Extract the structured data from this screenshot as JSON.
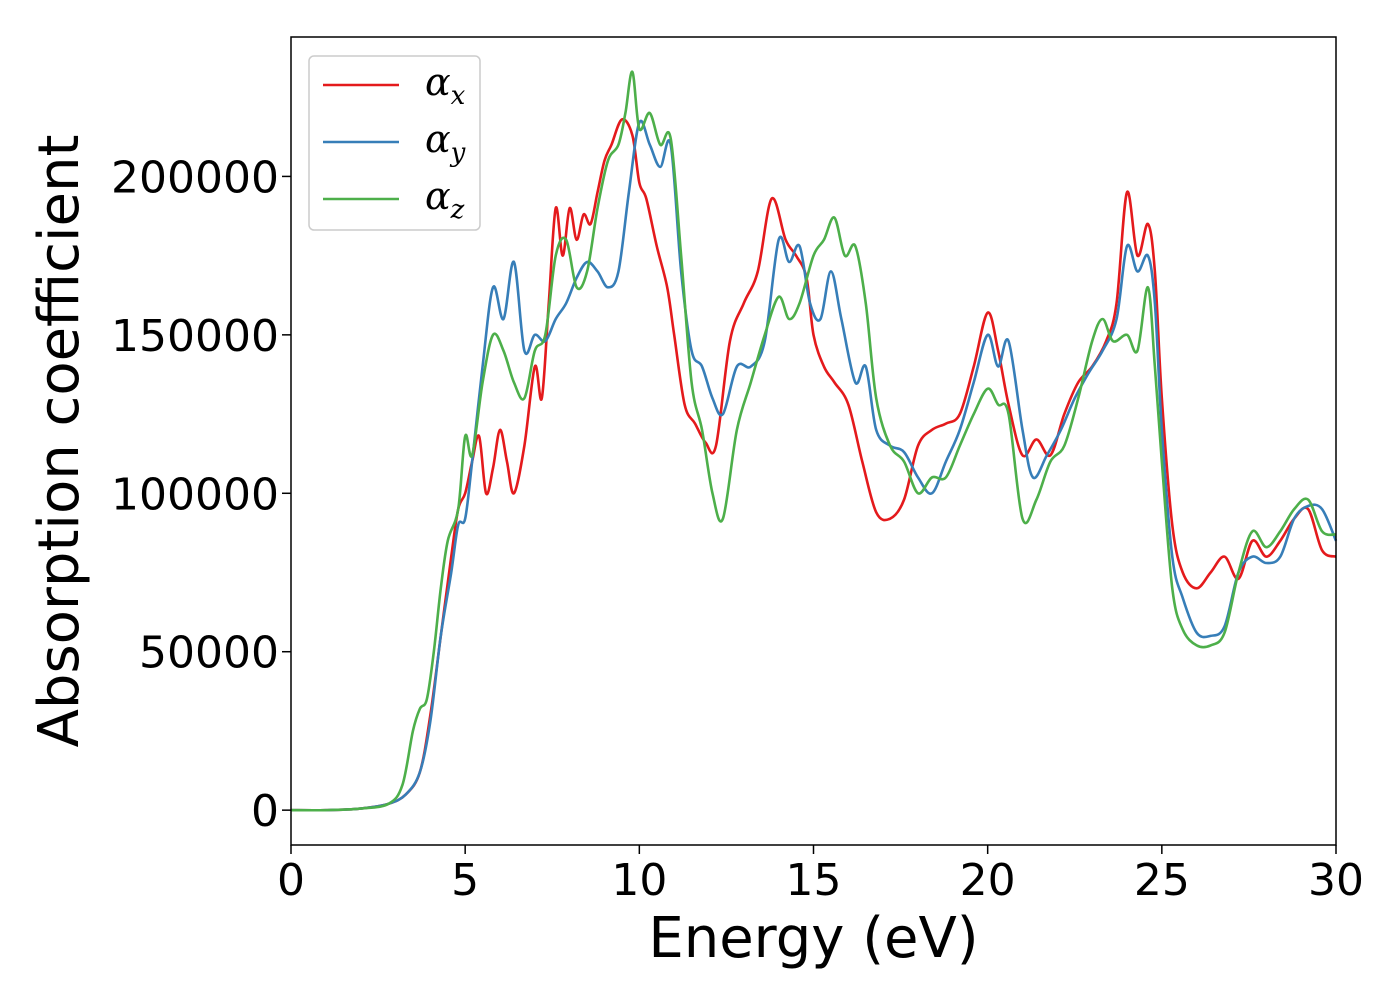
{
  "chart_data": {
    "type": "line",
    "title": "",
    "xlabel": "Energy (eV)",
    "ylabel": "Absorption coefficient",
    "xlim": [
      0,
      30
    ],
    "ylim": [
      -11000,
      244000
    ],
    "xticks": [
      0,
      5,
      10,
      15,
      20,
      25,
      30
    ],
    "yticks": [
      0,
      50000,
      100000,
      150000,
      200000
    ],
    "legend_position": "top-left",
    "grid": false,
    "series": [
      {
        "name": "α_x",
        "symbol": "α",
        "subscript": "x",
        "color": "#e41a1c",
        "points": [
          [
            0,
            0
          ],
          [
            1,
            0
          ],
          [
            2,
            500
          ],
          [
            2.8,
            2000
          ],
          [
            3.3,
            5000
          ],
          [
            3.7,
            12000
          ],
          [
            4.0,
            30000
          ],
          [
            4.3,
            55000
          ],
          [
            4.6,
            80000
          ],
          [
            4.8,
            95000
          ],
          [
            5.0,
            100000
          ],
          [
            5.2,
            110000
          ],
          [
            5.4,
            118000
          ],
          [
            5.6,
            100000
          ],
          [
            5.8,
            108000
          ],
          [
            6.0,
            120000
          ],
          [
            6.2,
            110000
          ],
          [
            6.4,
            100000
          ],
          [
            6.7,
            115000
          ],
          [
            7.0,
            140000
          ],
          [
            7.2,
            130000
          ],
          [
            7.4,
            160000
          ],
          [
            7.6,
            190000
          ],
          [
            7.8,
            175000
          ],
          [
            8.0,
            190000
          ],
          [
            8.2,
            180000
          ],
          [
            8.4,
            188000
          ],
          [
            8.6,
            185000
          ],
          [
            8.8,
            195000
          ],
          [
            9.0,
            205000
          ],
          [
            9.2,
            210000
          ],
          [
            9.5,
            218000
          ],
          [
            9.8,
            213000
          ],
          [
            10.0,
            198000
          ],
          [
            10.2,
            193000
          ],
          [
            10.5,
            178000
          ],
          [
            10.8,
            165000
          ],
          [
            11.0,
            150000
          ],
          [
            11.3,
            128000
          ],
          [
            11.6,
            122000
          ],
          [
            11.9,
            116000
          ],
          [
            12.2,
            115000
          ],
          [
            12.6,
            148000
          ],
          [
            13.0,
            160000
          ],
          [
            13.4,
            170000
          ],
          [
            13.8,
            193000
          ],
          [
            14.2,
            180000
          ],
          [
            14.5,
            175000
          ],
          [
            14.8,
            168000
          ],
          [
            15.0,
            150000
          ],
          [
            15.3,
            140000
          ],
          [
            15.6,
            135000
          ],
          [
            16.0,
            128000
          ],
          [
            16.4,
            110000
          ],
          [
            16.8,
            94000
          ],
          [
            17.2,
            92000
          ],
          [
            17.6,
            98000
          ],
          [
            18.0,
            115000
          ],
          [
            18.4,
            120000
          ],
          [
            18.8,
            122000
          ],
          [
            19.2,
            125000
          ],
          [
            19.6,
            140000
          ],
          [
            20.0,
            157000
          ],
          [
            20.3,
            145000
          ],
          [
            20.6,
            128000
          ],
          [
            21.0,
            112000
          ],
          [
            21.4,
            117000
          ],
          [
            21.8,
            112000
          ],
          [
            22.2,
            125000
          ],
          [
            22.6,
            135000
          ],
          [
            23.0,
            140000
          ],
          [
            23.4,
            148000
          ],
          [
            23.7,
            160000
          ],
          [
            24.0,
            195000
          ],
          [
            24.3,
            175000
          ],
          [
            24.6,
            185000
          ],
          [
            24.8,
            170000
          ],
          [
            25.0,
            130000
          ],
          [
            25.3,
            90000
          ],
          [
            25.6,
            75000
          ],
          [
            26.0,
            70000
          ],
          [
            26.4,
            75000
          ],
          [
            26.8,
            80000
          ],
          [
            27.2,
            73000
          ],
          [
            27.6,
            85000
          ],
          [
            28.0,
            80000
          ],
          [
            28.4,
            85000
          ],
          [
            28.8,
            92000
          ],
          [
            29.2,
            95000
          ],
          [
            29.6,
            82000
          ],
          [
            30.0,
            80000
          ]
        ]
      },
      {
        "name": "α_y",
        "symbol": "α",
        "subscript": "y",
        "color": "#377eb8",
        "points": [
          [
            0,
            0
          ],
          [
            1,
            0
          ],
          [
            2,
            500
          ],
          [
            2.8,
            2000
          ],
          [
            3.3,
            5000
          ],
          [
            3.7,
            12000
          ],
          [
            4.0,
            28000
          ],
          [
            4.3,
            55000
          ],
          [
            4.6,
            75000
          ],
          [
            4.8,
            90000
          ],
          [
            5.0,
            92000
          ],
          [
            5.2,
            110000
          ],
          [
            5.5,
            140000
          ],
          [
            5.8,
            165000
          ],
          [
            6.1,
            155000
          ],
          [
            6.4,
            173000
          ],
          [
            6.7,
            145000
          ],
          [
            7.0,
            150000
          ],
          [
            7.3,
            148000
          ],
          [
            7.6,
            155000
          ],
          [
            7.9,
            160000
          ],
          [
            8.2,
            168000
          ],
          [
            8.5,
            173000
          ],
          [
            8.8,
            170000
          ],
          [
            9.1,
            165000
          ],
          [
            9.4,
            170000
          ],
          [
            9.7,
            195000
          ],
          [
            10.0,
            217000
          ],
          [
            10.3,
            210000
          ],
          [
            10.6,
            203000
          ],
          [
            10.9,
            210000
          ],
          [
            11.2,
            170000
          ],
          [
            11.5,
            145000
          ],
          [
            11.8,
            140000
          ],
          [
            12.1,
            130000
          ],
          [
            12.4,
            125000
          ],
          [
            12.8,
            140000
          ],
          [
            13.2,
            140000
          ],
          [
            13.6,
            148000
          ],
          [
            14.0,
            180000
          ],
          [
            14.3,
            173000
          ],
          [
            14.6,
            178000
          ],
          [
            14.9,
            160000
          ],
          [
            15.2,
            155000
          ],
          [
            15.5,
            170000
          ],
          [
            15.8,
            155000
          ],
          [
            16.2,
            135000
          ],
          [
            16.5,
            140000
          ],
          [
            16.8,
            120000
          ],
          [
            17.2,
            115000
          ],
          [
            17.6,
            113000
          ],
          [
            18.0,
            105000
          ],
          [
            18.4,
            100000
          ],
          [
            18.8,
            110000
          ],
          [
            19.2,
            120000
          ],
          [
            19.6,
            135000
          ],
          [
            20.0,
            150000
          ],
          [
            20.3,
            140000
          ],
          [
            20.6,
            148000
          ],
          [
            21.0,
            120000
          ],
          [
            21.3,
            105000
          ],
          [
            21.7,
            112000
          ],
          [
            22.1,
            120000
          ],
          [
            22.5,
            130000
          ],
          [
            22.9,
            138000
          ],
          [
            23.3,
            145000
          ],
          [
            23.7,
            155000
          ],
          [
            24.0,
            178000
          ],
          [
            24.3,
            170000
          ],
          [
            24.6,
            175000
          ],
          [
            24.8,
            160000
          ],
          [
            25.0,
            120000
          ],
          [
            25.3,
            80000
          ],
          [
            25.6,
            67000
          ],
          [
            26.0,
            56000
          ],
          [
            26.4,
            55000
          ],
          [
            26.8,
            58000
          ],
          [
            27.2,
            75000
          ],
          [
            27.6,
            80000
          ],
          [
            28.0,
            78000
          ],
          [
            28.4,
            80000
          ],
          [
            28.8,
            92000
          ],
          [
            29.2,
            96000
          ],
          [
            29.6,
            95000
          ],
          [
            30.0,
            85000
          ]
        ]
      },
      {
        "name": "α_z",
        "symbol": "α",
        "subscript": "z",
        "color": "#4daf4a",
        "points": [
          [
            0,
            0
          ],
          [
            1,
            0
          ],
          [
            2,
            500
          ],
          [
            2.8,
            2000
          ],
          [
            3.2,
            8000
          ],
          [
            3.5,
            25000
          ],
          [
            3.7,
            32000
          ],
          [
            3.9,
            35000
          ],
          [
            4.1,
            50000
          ],
          [
            4.3,
            70000
          ],
          [
            4.5,
            85000
          ],
          [
            4.8,
            95000
          ],
          [
            5.0,
            118000
          ],
          [
            5.2,
            112000
          ],
          [
            5.5,
            135000
          ],
          [
            5.8,
            150000
          ],
          [
            6.1,
            145000
          ],
          [
            6.4,
            135000
          ],
          [
            6.7,
            130000
          ],
          [
            7.0,
            145000
          ],
          [
            7.3,
            150000
          ],
          [
            7.6,
            175000
          ],
          [
            7.9,
            180000
          ],
          [
            8.2,
            165000
          ],
          [
            8.5,
            170000
          ],
          [
            8.8,
            190000
          ],
          [
            9.1,
            205000
          ],
          [
            9.4,
            210000
          ],
          [
            9.6,
            220000
          ],
          [
            9.8,
            233000
          ],
          [
            10.0,
            215000
          ],
          [
            10.3,
            220000
          ],
          [
            10.6,
            210000
          ],
          [
            10.9,
            212000
          ],
          [
            11.2,
            175000
          ],
          [
            11.5,
            135000
          ],
          [
            11.8,
            120000
          ],
          [
            12.1,
            100000
          ],
          [
            12.4,
            92000
          ],
          [
            12.8,
            120000
          ],
          [
            13.2,
            135000
          ],
          [
            13.6,
            150000
          ],
          [
            14.0,
            162000
          ],
          [
            14.3,
            155000
          ],
          [
            14.6,
            160000
          ],
          [
            15.0,
            175000
          ],
          [
            15.3,
            180000
          ],
          [
            15.6,
            187000
          ],
          [
            15.9,
            175000
          ],
          [
            16.2,
            178000
          ],
          [
            16.5,
            160000
          ],
          [
            16.8,
            130000
          ],
          [
            17.2,
            115000
          ],
          [
            17.6,
            110000
          ],
          [
            18.0,
            100000
          ],
          [
            18.4,
            105000
          ],
          [
            18.8,
            105000
          ],
          [
            19.2,
            115000
          ],
          [
            19.6,
            125000
          ],
          [
            20.0,
            133000
          ],
          [
            20.3,
            128000
          ],
          [
            20.6,
            125000
          ],
          [
            21.0,
            92000
          ],
          [
            21.4,
            98000
          ],
          [
            21.8,
            110000
          ],
          [
            22.2,
            115000
          ],
          [
            22.6,
            130000
          ],
          [
            23.0,
            148000
          ],
          [
            23.3,
            155000
          ],
          [
            23.6,
            148000
          ],
          [
            24.0,
            150000
          ],
          [
            24.3,
            145000
          ],
          [
            24.6,
            165000
          ],
          [
            24.8,
            140000
          ],
          [
            25.0,
            110000
          ],
          [
            25.3,
            70000
          ],
          [
            25.6,
            57000
          ],
          [
            26.0,
            52000
          ],
          [
            26.4,
            52000
          ],
          [
            26.8,
            56000
          ],
          [
            27.2,
            75000
          ],
          [
            27.6,
            88000
          ],
          [
            28.0,
            83000
          ],
          [
            28.4,
            88000
          ],
          [
            28.8,
            95000
          ],
          [
            29.2,
            98000
          ],
          [
            29.6,
            88000
          ],
          [
            30.0,
            87000
          ]
        ]
      }
    ]
  }
}
